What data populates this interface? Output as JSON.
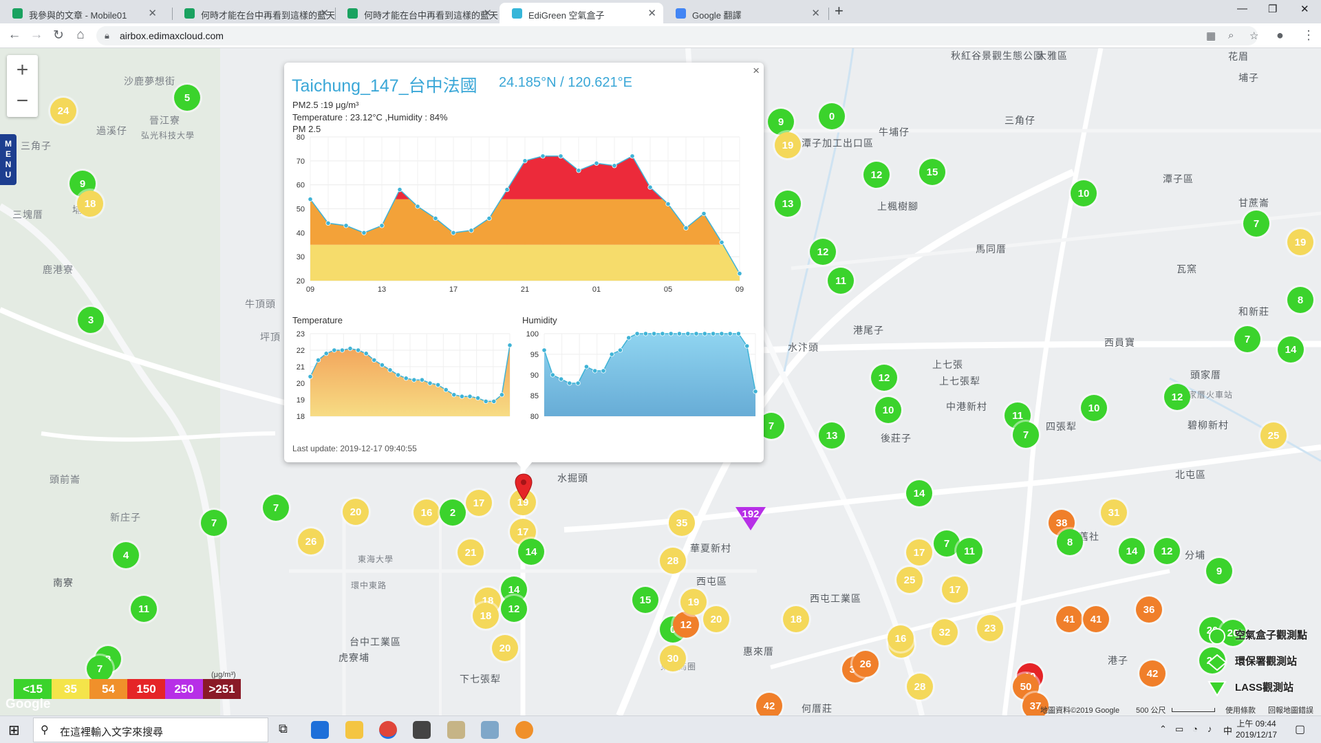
{
  "browser": {
    "tabs": [
      {
        "title": "我參與的文章 - Mobile01",
        "active": false
      },
      {
        "title": "何時才能在台中再看到這樣的藍天",
        "active": false
      },
      {
        "title": "何時才能在台中再看到這樣的藍天",
        "active": false
      },
      {
        "title": "EdiGreen 空氣盒子",
        "active": true
      },
      {
        "title": "Google 翻譯",
        "active": false
      }
    ],
    "url": "airbox.edimaxcloud.com"
  },
  "map": {
    "zoom_in": "+",
    "zoom_out": "−",
    "menu_label": "M\nE\nN\nU",
    "places": [
      "沙鹿夢想街",
      "晉江寮",
      "弘光科技大學",
      "過溪仔",
      "三角子",
      "埔子",
      "三塊厝",
      "鹿港寮",
      "牛頂頭",
      "坪頂",
      "東海大學",
      "頭前崙",
      "新庄子",
      "南寮",
      "台中工業區",
      "虎寮埔",
      "下七張犁",
      "水掘頭",
      "華夏新村",
      "西屯區",
      "西屯工業區",
      "惠來厝",
      "何厝莊",
      "港尾子",
      "上七張",
      "上七張犁",
      "中港新村",
      "後莊子",
      "四張犁",
      "頭家厝",
      "頭家厝火車站",
      "碧柳新村",
      "北屯區",
      "舊社",
      "分埔",
      "港子",
      "水汴頭",
      "西員寶",
      "馬同厝",
      "上楓樹腳",
      "牛埔仔",
      "三角仔",
      "大雅區",
      "潭子加工出口區",
      "潭子區",
      "甘蔗崙",
      "瓦窯",
      "和新莊",
      "埔子",
      "花眉",
      "秋紅谷景觀生態公園",
      "東海商圈",
      "環中東路"
    ],
    "markers": [
      "24",
      "5",
      "9",
      "18",
      "3",
      "9",
      "19",
      "0",
      "12",
      "15",
      "10",
      "7",
      "19",
      "13",
      "12",
      "11",
      "8",
      "7",
      "14",
      "12",
      "10",
      "13",
      "11",
      "7",
      "12",
      "10",
      "25",
      "7",
      "7",
      "16",
      "2",
      "17",
      "20",
      "26",
      "21",
      "19",
      "17",
      "14",
      "35",
      "28",
      "14",
      "18",
      "18",
      "12",
      "15",
      "0",
      "12",
      "19",
      "20",
      "18",
      "32",
      "23",
      "17",
      "25",
      "25",
      "17",
      "7",
      "11",
      "14",
      "38",
      "31",
      "8",
      "14",
      "12",
      "9",
      "41",
      "41",
      "36",
      "42",
      "39",
      "26",
      "16",
      "28",
      "20",
      "30",
      "42",
      "10",
      "50",
      "37",
      "4",
      "7",
      "11",
      "8",
      "7",
      "20",
      "20",
      "20"
    ],
    "epa_marker": "192",
    "legend": [
      {
        "label": "<15",
        "color": "#3bd32c"
      },
      {
        "label": "35",
        "color": "#f4e44a"
      },
      {
        "label": "54",
        "color": "#f0902a"
      },
      {
        "label": "150",
        "color": "#e52427"
      },
      {
        "label": "250",
        "color": "#b72fe7"
      },
      {
        "label": ">251",
        "color": "#8a1a27"
      }
    ],
    "legend_unit": "(μg/m³)",
    "google_logo": "Google",
    "footer": {
      "map_data": "地圖資料©2019 Google",
      "scale": "500 公尺",
      "terms": "使用條款",
      "report": "回報地圖錯誤"
    },
    "station_legend": [
      "空氣盒子觀測點",
      "環保署觀測站",
      "LASS觀測站"
    ]
  },
  "popup": {
    "title": "Taichung_147_台中法國",
    "coords": "24.185°N / 120.621°E",
    "pm25_line": "PM2.5 :19 μg/m³",
    "temp_line": "Temperature : 23.12°C ,Humidity : 84%",
    "chart_title": "PM 2.5",
    "temp_title": "Temperature",
    "hum_title": "Humidity",
    "last_update": "Last update: 2019-12-17 09:40:55",
    "close": "×"
  },
  "chart_data": [
    {
      "type": "area",
      "title": "PM 2.5",
      "x_ticks": [
        "09",
        "13",
        "17",
        "21",
        "01",
        "05",
        "09"
      ],
      "ylim": [
        20,
        80
      ],
      "y_ticks": [
        20,
        30,
        40,
        50,
        60,
        70,
        80
      ],
      "values": [
        54,
        44,
        43,
        40,
        43,
        58,
        51,
        46,
        40,
        41,
        46,
        58,
        70,
        72,
        72,
        66,
        69,
        68,
        72,
        59,
        52,
        42,
        48,
        36,
        23
      ]
    },
    {
      "type": "area",
      "title": "Temperature",
      "ylim": [
        18,
        23
      ],
      "y_ticks": [
        18,
        19,
        20,
        21,
        22,
        23
      ],
      "values": [
        20.4,
        21.4,
        21.8,
        22,
        22,
        22.1,
        22,
        21.8,
        21.4,
        21.1,
        20.8,
        20.5,
        20.3,
        20.2,
        20.2,
        20,
        19.9,
        19.6,
        19.3,
        19.2,
        19.2,
        19.1,
        18.9,
        18.9,
        19.3,
        22.3
      ]
    },
    {
      "type": "area",
      "title": "Humidity",
      "ylim": [
        80,
        100
      ],
      "y_ticks": [
        80,
        85,
        90,
        95,
        100
      ],
      "values": [
        96,
        90,
        89,
        88,
        88,
        92,
        91,
        91,
        95,
        96,
        99,
        100,
        100,
        100,
        100,
        100,
        100,
        100,
        100,
        100,
        100,
        100,
        100,
        100,
        97,
        86
      ]
    }
  ],
  "taskbar": {
    "search_placeholder": "在這裡輸入文字來搜尋",
    "time": "上午 09:44",
    "date": "2019/12/17",
    "ime": "中"
  }
}
